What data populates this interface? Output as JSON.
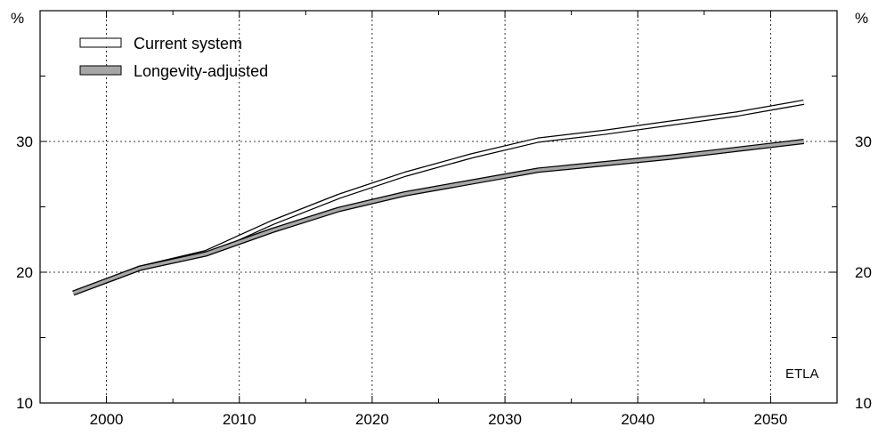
{
  "chart_data": {
    "type": "line",
    "title": "",
    "xlabel": "",
    "ylabel": "%",
    "y_unit_left": "%",
    "y_unit_right": "%",
    "xlim": [
      1995,
      2055
    ],
    "ylim": [
      10,
      40
    ],
    "x_ticks": [
      2000,
      2010,
      2020,
      2030,
      2040,
      2050
    ],
    "x_tick_labels": [
      "2000",
      "2010",
      "2020",
      "2030",
      "2040",
      "2050"
    ],
    "y_ticks_labeled": [
      10,
      20,
      30
    ],
    "y_tick_labels": [
      "10",
      "20",
      "30"
    ],
    "y_ticks_minor": [
      15,
      25,
      35
    ],
    "grid": true,
    "legend_position": "top-left",
    "source_note": "ETLA",
    "series": [
      {
        "name": "Current system",
        "style": "outlined-white",
        "color": "#ffffff",
        "x": [
          1997.5,
          2002.5,
          2007.5,
          2012.5,
          2017.5,
          2022.5,
          2027.5,
          2032.5,
          2037.5,
          2042.5,
          2047.5,
          2052.5
        ],
        "values": [
          18.4,
          20.3,
          21.5,
          23.8,
          25.8,
          27.5,
          28.9,
          30.1,
          30.7,
          31.4,
          32.1,
          33.0
        ]
      },
      {
        "name": "Longevity-adjusted",
        "style": "outlined-gray",
        "color": "#a6a6a6",
        "x": [
          1997.5,
          2002.5,
          2007.5,
          2012.5,
          2017.5,
          2022.5,
          2027.5,
          2032.5,
          2037.5,
          2042.5,
          2047.5,
          2052.5
        ],
        "values": [
          18.4,
          20.3,
          21.4,
          23.2,
          24.8,
          26.0,
          26.9,
          27.8,
          28.3,
          28.8,
          29.4,
          30.0
        ]
      }
    ]
  }
}
